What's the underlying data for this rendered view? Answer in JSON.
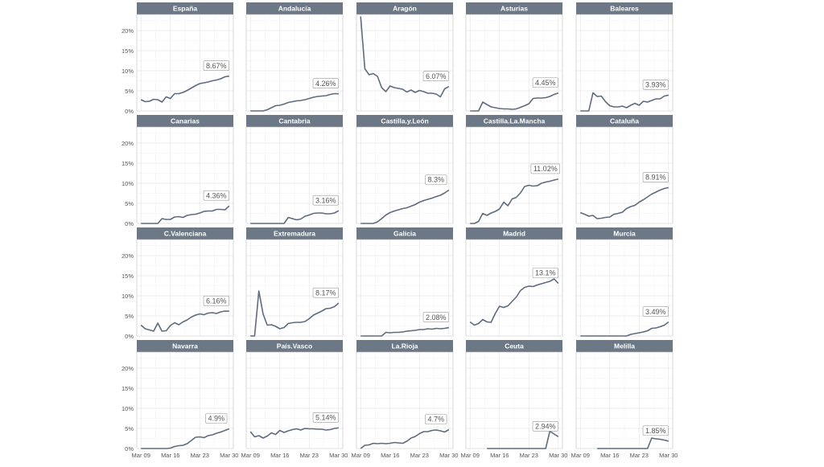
{
  "chart_data": {
    "type": "line",
    "layout": "small-multiples",
    "grid": true,
    "ylim": [
      0,
      24
    ],
    "y_ticks": [
      0,
      5,
      10,
      15,
      20
    ],
    "y_tick_labels": [
      "0%",
      "5%",
      "10%",
      "15%",
      "20%"
    ],
    "x_ticks": [
      0,
      7,
      14,
      21
    ],
    "x_tick_labels": [
      "Mar 09",
      "Mar 16",
      "Mar 23",
      "Mar 30"
    ],
    "xlim": [
      -1,
      22
    ],
    "colors": {
      "line": "#5f6b7e",
      "strip": "#6c7886",
      "strip_text": "#ffffff",
      "grid": "#e6e6e6"
    },
    "panels": [
      {
        "name": "España",
        "label": "8.67%",
        "x": [
          0,
          1,
          2,
          3,
          4,
          5,
          6,
          7,
          8,
          9,
          10,
          11,
          12,
          13,
          14,
          15,
          16,
          17,
          18,
          19,
          20,
          21
        ],
        "values": [
          2.8,
          2.3,
          2.4,
          2.9,
          2.8,
          2.2,
          3.5,
          3.1,
          4.3,
          4.3,
          4.6,
          5.1,
          5.7,
          6.3,
          6.8,
          7.0,
          7.2,
          7.5,
          7.7,
          8.0,
          8.5,
          8.67
        ]
      },
      {
        "name": "Andalucía",
        "label": "4.26%",
        "x": [
          0,
          1,
          2,
          3,
          4,
          5,
          6,
          7,
          8,
          9,
          10,
          11,
          12,
          13,
          14,
          15,
          16,
          17,
          18,
          19,
          20,
          21
        ],
        "values": [
          0,
          0,
          0,
          0,
          0.3,
          0.8,
          1.3,
          1.4,
          1.7,
          2.1,
          2.3,
          2.5,
          2.6,
          2.8,
          3.1,
          3.4,
          3.6,
          3.7,
          3.8,
          4.1,
          4.3,
          4.26
        ]
      },
      {
        "name": "Aragón",
        "label": "6.07%",
        "x": [
          0,
          1,
          2,
          3,
          4,
          5,
          6,
          7,
          8,
          9,
          10,
          11,
          12,
          13,
          14,
          15,
          16,
          17,
          18,
          19,
          20,
          21
        ],
        "values": [
          23.5,
          10.5,
          9.0,
          9.3,
          8.6,
          5.8,
          4.8,
          6.2,
          5.8,
          5.6,
          5.4,
          4.7,
          5.2,
          4.6,
          5.1,
          4.8,
          4.4,
          4.4,
          4.2,
          3.5,
          5.5,
          6.07
        ]
      },
      {
        "name": "Asturias",
        "label": "4.45%",
        "x": [
          0,
          1,
          2,
          3,
          4,
          5,
          6,
          7,
          8,
          9,
          10,
          11,
          12,
          13,
          14,
          15,
          16,
          17,
          18,
          19,
          20,
          21
        ],
        "values": [
          0,
          0,
          0,
          2.2,
          1.6,
          1.0,
          0.8,
          0.6,
          0.5,
          0.5,
          0.4,
          0.5,
          0.9,
          1.3,
          1.8,
          3.1,
          3.2,
          3.2,
          3.3,
          3.6,
          4.1,
          4.45
        ]
      },
      {
        "name": "Baleares",
        "label": "3.93%",
        "x": [
          0,
          1,
          2,
          3,
          4,
          5,
          6,
          7,
          8,
          9,
          10,
          11,
          12,
          13,
          14,
          15,
          16,
          17,
          18,
          19,
          20,
          21
        ],
        "values": [
          0,
          0,
          0,
          4.5,
          3.6,
          3.7,
          2.3,
          1.3,
          1.0,
          1.0,
          1.2,
          0.8,
          1.4,
          1.9,
          1.4,
          2.4,
          2.2,
          2.6,
          3.0,
          3.0,
          3.7,
          3.93
        ]
      },
      {
        "name": "Canarias",
        "label": "4.36%",
        "x": [
          0,
          1,
          2,
          3,
          4,
          5,
          6,
          7,
          8,
          9,
          10,
          11,
          12,
          13,
          14,
          15,
          16,
          17,
          18,
          19,
          20,
          21
        ],
        "values": [
          0,
          0,
          0,
          0,
          0,
          1.2,
          1.0,
          1.0,
          1.6,
          1.7,
          1.5,
          2.0,
          2.2,
          2.3,
          2.6,
          3.0,
          3.1,
          3.1,
          3.5,
          3.5,
          3.4,
          4.36
        ]
      },
      {
        "name": "Cantabria",
        "label": "3.16%",
        "x": [
          0,
          1,
          2,
          3,
          4,
          5,
          6,
          7,
          8,
          9,
          10,
          11,
          12,
          13,
          14,
          15,
          16,
          17,
          18,
          19,
          20,
          21
        ],
        "values": [
          0,
          0,
          0,
          0,
          0,
          0,
          0,
          0,
          0,
          1.5,
          1.2,
          0.9,
          1.1,
          1.8,
          2.1,
          2.5,
          2.6,
          2.6,
          2.4,
          2.4,
          2.6,
          3.16
        ]
      },
      {
        "name": "Castilla.y.León",
        "label": "8.3%",
        "x": [
          0,
          1,
          2,
          3,
          4,
          5,
          6,
          7,
          8,
          9,
          10,
          11,
          12,
          13,
          14,
          15,
          16,
          17,
          18,
          19,
          20,
          21
        ],
        "values": [
          0,
          0,
          0,
          0,
          0.4,
          1.2,
          2.1,
          2.7,
          3.1,
          3.4,
          3.7,
          3.9,
          4.3,
          4.7,
          5.3,
          5.7,
          6.0,
          6.3,
          6.7,
          7.0,
          7.6,
          8.3
        ]
      },
      {
        "name": "Castilla.La.Mancha",
        "label": "11.02%",
        "x": [
          0,
          1,
          2,
          3,
          4,
          5,
          6,
          7,
          8,
          9,
          10,
          11,
          12,
          13,
          14,
          15,
          16,
          17,
          18,
          19,
          20,
          21
        ],
        "values": [
          0,
          0,
          0.5,
          2.5,
          2.0,
          2.6,
          3.0,
          3.6,
          5.3,
          4.4,
          6.1,
          6.5,
          7.6,
          9.2,
          9.5,
          9.3,
          9.4,
          10.0,
          10.3,
          10.5,
          10.8,
          11.02
        ]
      },
      {
        "name": "Cataluña",
        "label": "8.91%",
        "x": [
          0,
          1,
          2,
          3,
          4,
          5,
          6,
          7,
          8,
          9,
          10,
          11,
          12,
          13,
          14,
          15,
          16,
          17,
          18,
          19,
          20,
          21
        ],
        "values": [
          2.7,
          2.3,
          1.8,
          2.0,
          1.2,
          1.3,
          1.5,
          1.6,
          2.3,
          2.5,
          2.8,
          3.7,
          4.2,
          4.5,
          5.3,
          5.9,
          6.6,
          7.3,
          7.8,
          8.3,
          8.7,
          8.91
        ]
      },
      {
        "name": "C.Valenciana",
        "label": "6.16%",
        "x": [
          0,
          1,
          2,
          3,
          4,
          5,
          6,
          7,
          8,
          9,
          10,
          11,
          12,
          13,
          14,
          15,
          16,
          17,
          18,
          19,
          20,
          21
        ],
        "values": [
          2.7,
          1.8,
          1.5,
          1.2,
          3.2,
          1.2,
          1.3,
          2.6,
          3.3,
          2.8,
          3.5,
          4.0,
          4.7,
          5.2,
          5.5,
          5.3,
          5.7,
          5.8,
          5.6,
          6.0,
          6.2,
          6.16
        ]
      },
      {
        "name": "Extremadura",
        "label": "8.17%",
        "x": [
          0,
          1,
          2,
          3,
          4,
          5,
          6,
          7,
          8,
          9,
          10,
          11,
          12,
          13,
          14,
          15,
          16,
          17,
          18,
          19,
          20,
          21
        ],
        "values": [
          0,
          0,
          11.2,
          5.5,
          2.7,
          2.8,
          2.4,
          1.8,
          2.1,
          3.1,
          3.3,
          3.4,
          3.4,
          3.6,
          4.3,
          5.2,
          5.7,
          6.2,
          6.8,
          6.9,
          7.3,
          8.17
        ]
      },
      {
        "name": "Galicia",
        "label": "2.08%",
        "x": [
          0,
          1,
          2,
          3,
          4,
          5,
          6,
          7,
          8,
          9,
          10,
          11,
          12,
          13,
          14,
          15,
          16,
          17,
          18,
          19,
          20,
          21
        ],
        "values": [
          0,
          0,
          0,
          0,
          0,
          0,
          0.9,
          0.8,
          0.9,
          0.9,
          1.0,
          1.2,
          1.3,
          1.4,
          1.6,
          1.6,
          1.8,
          1.7,
          1.9,
          1.8,
          1.9,
          2.08
        ]
      },
      {
        "name": "Madrid",
        "label": "13.1%",
        "x": [
          0,
          1,
          2,
          3,
          4,
          5,
          6,
          7,
          8,
          9,
          10,
          11,
          12,
          13,
          14,
          15,
          16,
          17,
          18,
          19,
          20,
          21
        ],
        "values": [
          3.5,
          2.7,
          3.1,
          4.1,
          3.5,
          3.4,
          5.6,
          7.4,
          7.1,
          7.5,
          8.6,
          9.7,
          11.3,
          12.1,
          12.4,
          12.3,
          12.7,
          13.0,
          13.3,
          13.6,
          14.2,
          13.1
        ]
      },
      {
        "name": "Murcia",
        "label": "3.49%",
        "x": [
          0,
          1,
          2,
          3,
          4,
          5,
          6,
          7,
          8,
          9,
          10,
          11,
          12,
          13,
          14,
          15,
          16,
          17,
          18,
          19,
          20,
          21
        ],
        "values": [
          0,
          0,
          0,
          0,
          0,
          0,
          0,
          0,
          0,
          0,
          0,
          0,
          0.4,
          0.6,
          0.8,
          1.0,
          1.3,
          1.9,
          2.0,
          2.3,
          2.7,
          3.49
        ]
      },
      {
        "name": "Navarra",
        "label": "4.9%",
        "x": [
          0,
          1,
          2,
          3,
          4,
          5,
          6,
          7,
          8,
          9,
          10,
          11,
          12,
          13,
          14,
          15,
          16,
          17,
          18,
          19,
          20,
          21
        ],
        "values": [
          0,
          0,
          0,
          0,
          0,
          0,
          0,
          0.1,
          0.5,
          0.7,
          0.8,
          1.2,
          2.0,
          2.8,
          2.9,
          2.7,
          3.2,
          3.4,
          3.8,
          4.1,
          4.5,
          4.9
        ]
      },
      {
        "name": "País.Vasco",
        "label": "5.14%",
        "x": [
          0,
          1,
          2,
          3,
          4,
          5,
          6,
          7,
          8,
          9,
          10,
          11,
          12,
          13,
          14,
          15,
          16,
          17,
          18,
          19,
          20,
          21
        ],
        "values": [
          4.2,
          2.9,
          3.2,
          2.6,
          3.1,
          3.9,
          3.5,
          4.5,
          4.0,
          4.4,
          4.7,
          4.9,
          4.6,
          5.0,
          4.9,
          4.9,
          4.8,
          4.8,
          4.6,
          4.7,
          5.0,
          5.14
        ]
      },
      {
        "name": "La.Rioja",
        "label": "4.7%",
        "x": [
          0,
          1,
          2,
          3,
          4,
          5,
          6,
          7,
          8,
          9,
          10,
          11,
          12,
          13,
          14,
          15,
          16,
          17,
          18,
          19,
          20,
          21
        ],
        "values": [
          0,
          0.8,
          0.9,
          1.3,
          1.2,
          1.3,
          1.2,
          1.3,
          1.5,
          1.4,
          1.3,
          1.8,
          2.6,
          3.0,
          3.7,
          4.2,
          4.2,
          4.5,
          4.6,
          4.4,
          4.1,
          4.7
        ]
      },
      {
        "name": "Ceuta",
        "label": "2.94%",
        "x": [
          4,
          5,
          6,
          7,
          8,
          9,
          10,
          11,
          12,
          13,
          14,
          15,
          16,
          17,
          18,
          19,
          20,
          21
        ],
        "values": [
          0,
          0,
          0,
          0,
          0,
          0,
          0,
          0,
          0,
          0,
          0,
          0,
          0,
          0,
          0,
          4.3,
          3.6,
          2.94
        ]
      },
      {
        "name": "Melilla",
        "label": "1.85%",
        "x": [
          4,
          5,
          6,
          7,
          8,
          9,
          10,
          11,
          12,
          13,
          14,
          15,
          16,
          17,
          18,
          19,
          20,
          21
        ],
        "values": [
          0,
          0,
          0,
          0,
          0,
          0,
          0,
          0,
          0,
          0,
          0,
          0,
          0,
          2.6,
          2.4,
          2.3,
          2.1,
          1.85
        ]
      }
    ]
  }
}
